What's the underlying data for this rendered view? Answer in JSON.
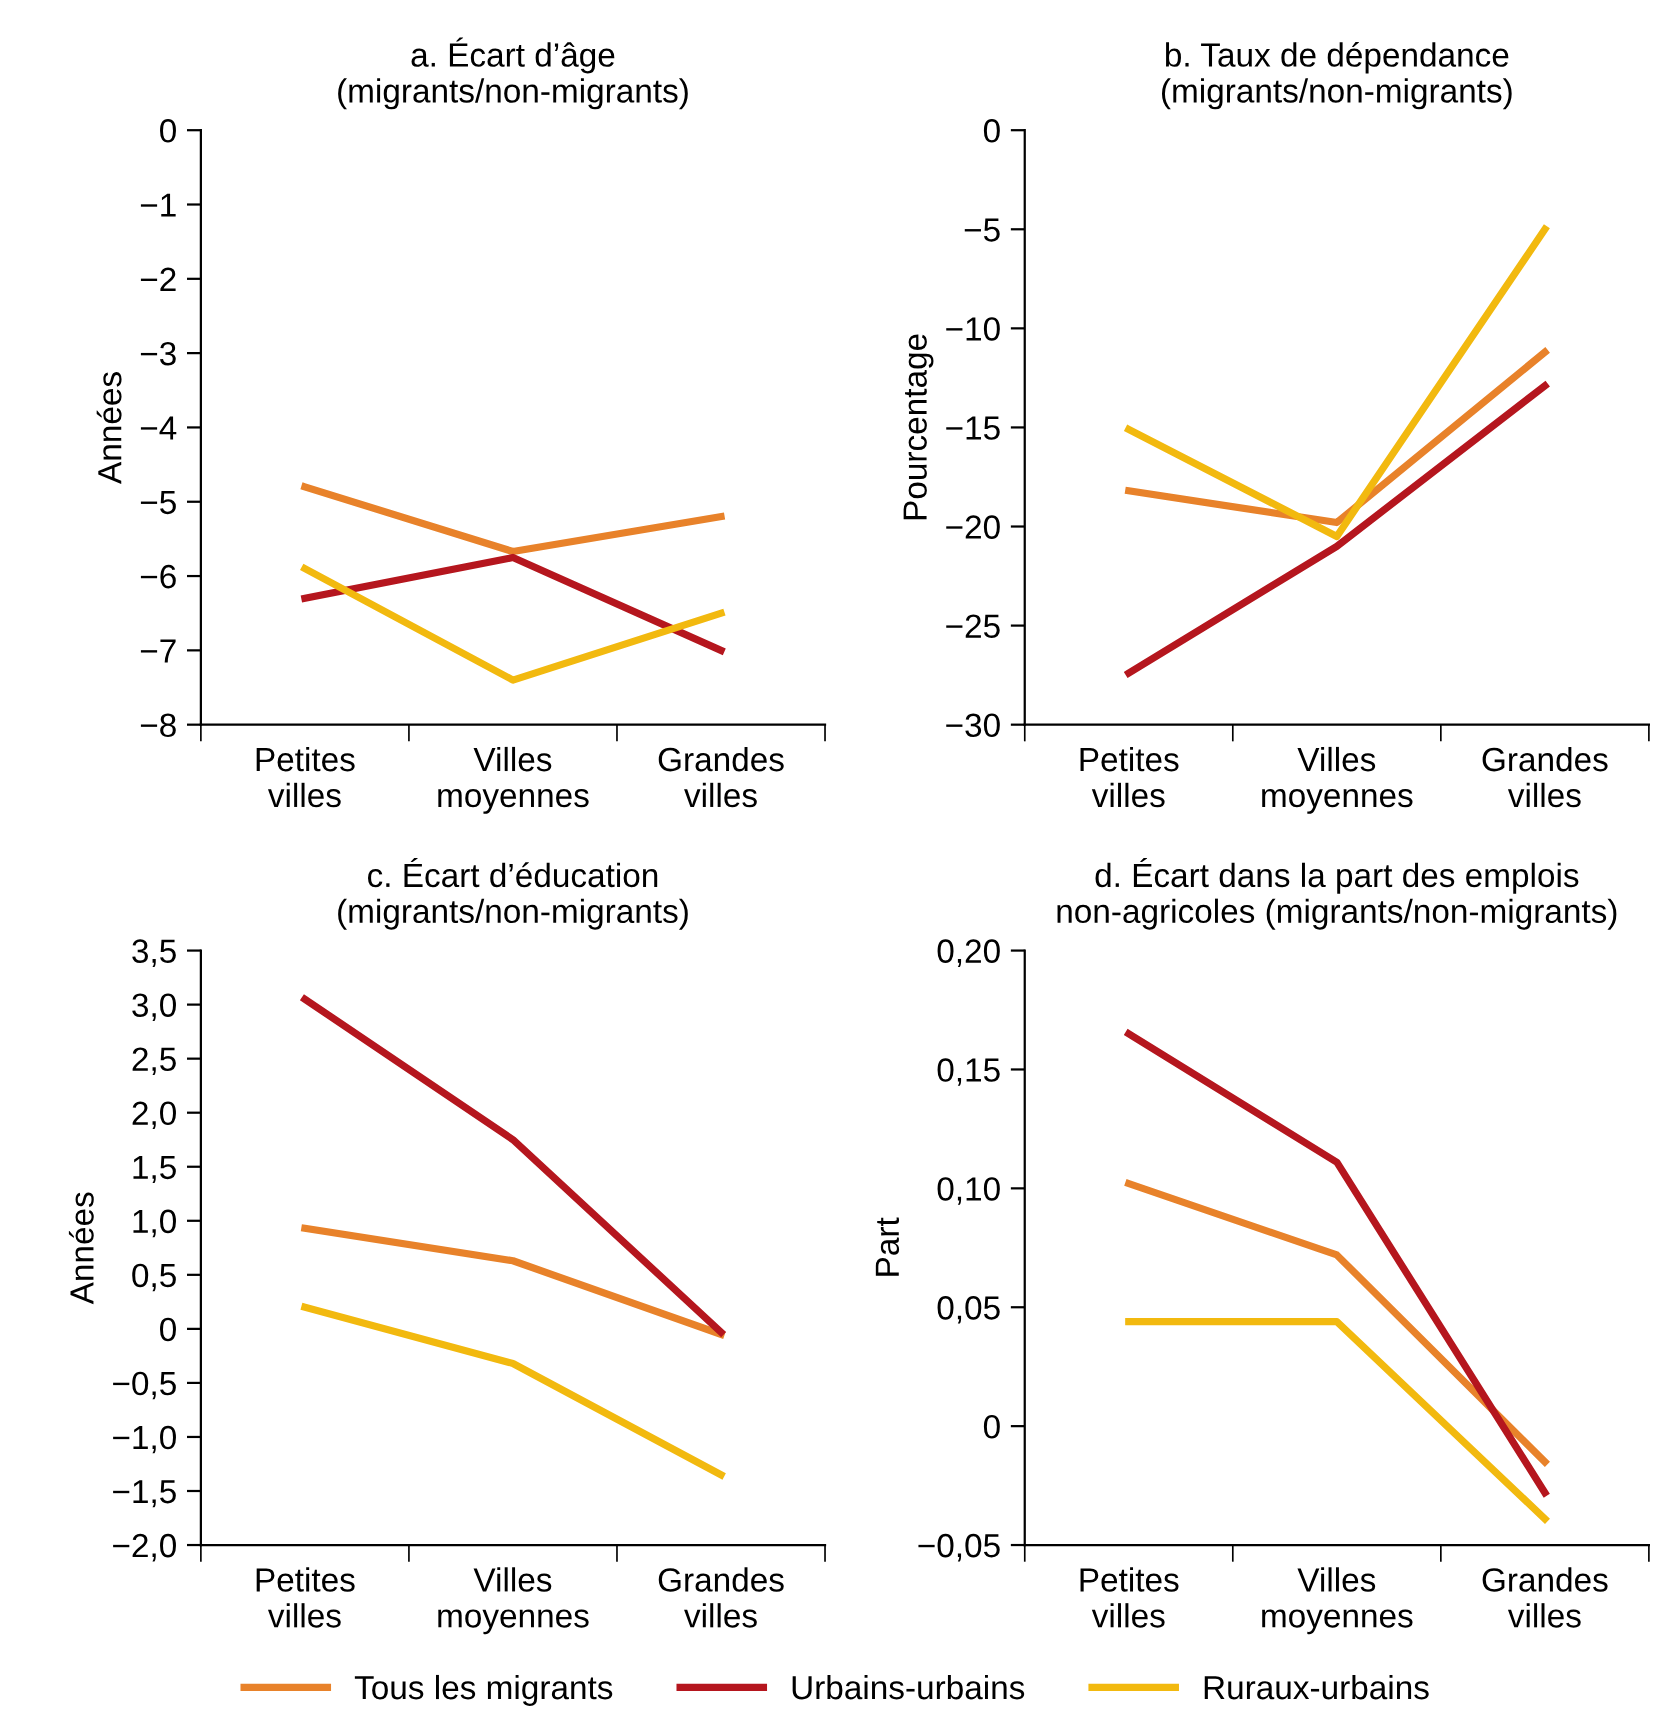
{
  "chart_data": [
    {
      "type": "line",
      "title": "a. Écart d’âge\n(migrants/non-migrants)",
      "ylabel": "Années",
      "categories": [
        "Petites\nvilles",
        "Villes\nmoyennes",
        "Grandes\nvilles"
      ],
      "series": [
        {
          "name": "Tous les migrants",
          "color": "#e8822a",
          "values": [
            -4.8,
            -5.67,
            -5.2
          ]
        },
        {
          "name": "Urbains-urbains",
          "color": "#b5161e",
          "values": [
            -6.3,
            -5.75,
            -7.0
          ]
        },
        {
          "name": "Ruraux-urbains",
          "color": "#f2b90f",
          "values": [
            -5.9,
            -7.4,
            -6.5
          ]
        }
      ],
      "ylim": [
        -8,
        0
      ],
      "yticks": [
        {
          "value": 0,
          "label": "0"
        },
        {
          "value": -1,
          "label": "−1"
        },
        {
          "value": -2,
          "label": "−2"
        },
        {
          "value": -3,
          "label": "−3"
        },
        {
          "value": -4,
          "label": "−4"
        },
        {
          "value": -5,
          "label": "−5"
        },
        {
          "value": -6,
          "label": "−6"
        },
        {
          "value": -7,
          "label": "−7"
        },
        {
          "value": -8,
          "label": "−8"
        }
      ],
      "grid": false,
      "legend": "bottom"
    },
    {
      "type": "line",
      "title": "b. Taux de dépendance\n(migrants/non-migrants)",
      "ylabel": "Pourcentage",
      "categories": [
        "Petites\nvilles",
        "Villes\nmoyennes",
        "Grandes\nvilles"
      ],
      "series": [
        {
          "color": "#e8822a",
          "values": [
            -18.2,
            -19.8,
            -11.2
          ]
        },
        {
          "color": "#b5161e",
          "values": [
            -27.4,
            -21.0,
            -12.9
          ]
        },
        {
          "color": "#f2b90f",
          "values": [
            -15.1,
            -20.5,
            -5.0
          ]
        }
      ],
      "ylim": [
        -30,
        0
      ],
      "yticks": [
        {
          "value": 0,
          "label": "0"
        },
        {
          "value": -5,
          "label": "−5"
        },
        {
          "value": -10,
          "label": "−10"
        },
        {
          "value": -15,
          "label": "−15"
        },
        {
          "value": -20,
          "label": "−20"
        },
        {
          "value": -25,
          "label": "−25"
        },
        {
          "value": -30,
          "label": "−30"
        }
      ],
      "grid": false,
      "legend": false
    },
    {
      "type": "line",
      "title": "c. Écart d’éducation\n(migrants/non-migrants)",
      "ylabel": "Années",
      "categories": [
        "Petites\nvilles",
        "Villes\nmoyennes",
        "Grandes\nvilles"
      ],
      "series": [
        {
          "color": "#e8822a",
          "values": [
            0.93,
            0.63,
            -0.05
          ]
        },
        {
          "color": "#b5161e",
          "values": [
            3.05,
            1.75,
            -0.03
          ]
        },
        {
          "color": "#f2b90f",
          "values": [
            0.2,
            -0.32,
            -1.35
          ]
        }
      ],
      "ylim": [
        -2,
        3.5
      ],
      "yticks": [
        {
          "value": 3.5,
          "label": "3,5"
        },
        {
          "value": 3,
          "label": "3,0"
        },
        {
          "value": 2.5,
          "label": "2,5"
        },
        {
          "value": 2,
          "label": "2,0"
        },
        {
          "value": 1.5,
          "label": "1,5"
        },
        {
          "value": 1,
          "label": "1,0"
        },
        {
          "value": 0.5,
          "label": "0,5"
        },
        {
          "value": 0,
          "label": "0"
        },
        {
          "value": -0.5,
          "label": "−0,5"
        },
        {
          "value": -1,
          "label": "−1,0"
        },
        {
          "value": -1.5,
          "label": "−1,5"
        },
        {
          "value": -2,
          "label": "−2,0"
        }
      ],
      "grid": false,
      "legend": false
    },
    {
      "type": "line",
      "title": "d. Écart dans la part des emplois\nnon-agricoles (migrants/non-migrants)",
      "ylabel": "Part",
      "categories": [
        "Petites\nvilles",
        "Villes\nmoyennes",
        "Grandes\nvilles"
      ],
      "series": [
        {
          "color": "#e8822a",
          "values": [
            0.102,
            0.072,
            -0.015
          ]
        },
        {
          "color": "#b5161e",
          "values": [
            0.165,
            0.111,
            -0.028
          ]
        },
        {
          "color": "#f2b90f",
          "values": [
            0.044,
            0.044,
            -0.039
          ]
        }
      ],
      "ylim": [
        -0.05,
        0.2
      ],
      "yticks": [
        {
          "value": 0.2,
          "label": "0,20"
        },
        {
          "value": 0.15,
          "label": "0,15"
        },
        {
          "value": 0.1,
          "label": "0,10"
        },
        {
          "value": 0.05,
          "label": "0,05"
        },
        {
          "value": 0,
          "label": "0"
        },
        {
          "value": -0.05,
          "label": "−0,05"
        }
      ],
      "grid": false,
      "legend": false
    }
  ]
}
